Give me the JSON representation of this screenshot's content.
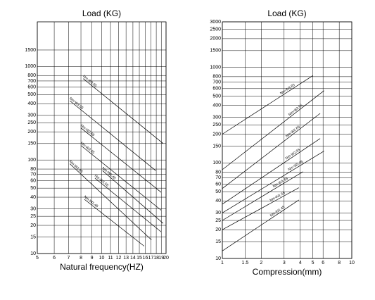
{
  "chart_data": [
    {
      "type": "line",
      "title": "Load (KG)",
      "x_label": "Natural frequency(HZ)",
      "xlog": true,
      "ylog": true,
      "grid": true,
      "xlim": [
        5,
        20
      ],
      "ylim": [
        10,
        3000
      ],
      "xticks": [
        5,
        6,
        7,
        8,
        9,
        10,
        11,
        12,
        13,
        14,
        15,
        16,
        17,
        18,
        19,
        20
      ],
      "yticks": [
        10,
        15,
        20,
        25,
        30,
        40,
        50,
        60,
        70,
        80,
        100,
        150,
        200,
        250,
        300,
        400,
        500,
        600,
        700,
        800,
        1000,
        1500
      ],
      "series": [
        {
          "name": "Nm-W3.65",
          "color": "#000000",
          "x": [
            8.2,
            19.4
          ],
          "values": [
            740,
            150
          ]
        },
        {
          "name": "Nm-W3.55",
          "color": "#000000",
          "x": [
            7.1,
            17.9
          ],
          "values": [
            430,
            77
          ]
        },
        {
          "name": "Nm-W2.65",
          "color": "#000000",
          "x": [
            8.0,
            19.0
          ],
          "values": [
            220,
            45
          ]
        },
        {
          "name": "Nm-W2.55",
          "color": "#000000",
          "x": [
            8.0,
            19.0
          ],
          "values": [
            143,
            29
          ]
        },
        {
          "name": "Nm-W1.65",
          "color": "#000000",
          "x": [
            7.1,
            17.1
          ],
          "values": [
            91,
            14
          ]
        },
        {
          "name": "Nm-W2.45",
          "color": "#000000",
          "x": [
            10.1,
            19.4
          ],
          "values": [
            77,
            21
          ]
        },
        {
          "name": "Nm-W1.55",
          "color": "#000000",
          "x": [
            9.3,
            19.0
          ],
          "values": [
            64,
            17
          ]
        },
        {
          "name": "Nm-W1.45",
          "color": "#000000",
          "x": [
            8.3,
            15.8
          ],
          "values": [
            38,
            12
          ]
        }
      ]
    },
    {
      "type": "line",
      "title": "Load (KG)",
      "x_label": "Compression(mm)",
      "xlog": true,
      "ylog": true,
      "grid": true,
      "xlim": [
        1,
        10
      ],
      "ylim": [
        10,
        3000
      ],
      "xticks": [
        1,
        1.5,
        2,
        3,
        4,
        5,
        6,
        8,
        10
      ],
      "yticks": [
        10,
        15,
        20,
        25,
        30,
        40,
        50,
        60,
        70,
        80,
        100,
        150,
        200,
        250,
        300,
        400,
        500,
        600,
        700,
        800,
        1000,
        1500,
        2000,
        2500,
        3000
      ],
      "series": [
        {
          "name": "Nm-W3.65",
          "color": "#000000",
          "x": [
            1,
            5.0
          ],
          "values": [
            200,
            820
          ]
        },
        {
          "name": "Nm-W3.55",
          "color": "#000000",
          "x": [
            1,
            6.1
          ],
          "values": [
            85,
            570
          ]
        },
        {
          "name": "Nm-W2.65",
          "color": "#000000",
          "x": [
            1,
            5.7
          ],
          "values": [
            54,
            330
          ]
        },
        {
          "name": "Nm-W2.55",
          "color": "#000000",
          "x": [
            1,
            5.7
          ],
          "values": [
            37,
            180
          ]
        },
        {
          "name": "Nm-W2.45",
          "color": "#000000",
          "x": [
            1,
            6.1
          ],
          "values": [
            30,
            133
          ]
        },
        {
          "name": "Nm-W1.65",
          "color": "#000000",
          "x": [
            1,
            4.2
          ],
          "values": [
            25,
            81
          ]
        },
        {
          "name": "Nm-W1.55",
          "color": "#000000",
          "x": [
            1,
            3.9
          ],
          "values": [
            20,
            55
          ]
        },
        {
          "name": "Nm-W1.45",
          "color": "#000000",
          "x": [
            1,
            3.9
          ],
          "values": [
            12,
            41
          ]
        }
      ]
    }
  ]
}
